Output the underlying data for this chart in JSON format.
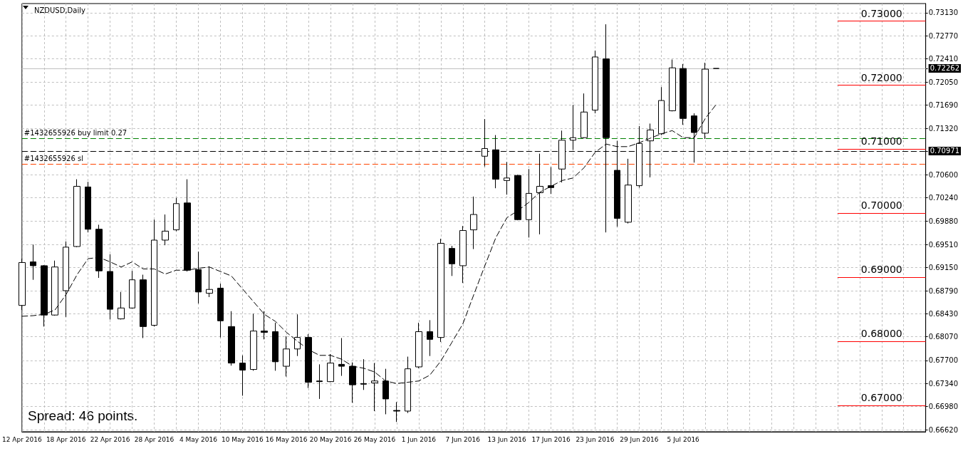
{
  "chart_data": {
    "type": "candlestick",
    "title": "NZDUSD,Daily",
    "categories": [
      "12 Apr 2016",
      null,
      null,
      null,
      "18 Apr 2016",
      null,
      null,
      null,
      "22 Apr 2016",
      null,
      null,
      null,
      "28 Apr 2016",
      null,
      null,
      null,
      "4 May 2016",
      null,
      null,
      null,
      "10 May 2016",
      null,
      null,
      null,
      "16 May 2016",
      null,
      null,
      null,
      "20 May 2016",
      null,
      null,
      null,
      "26 May 2016",
      null,
      null,
      null,
      "1 Jun 2016",
      null,
      null,
      null,
      "7 Jun 2016",
      null,
      null,
      null,
      "13 Jun 2016",
      null,
      null,
      null,
      "17 Jun 2016",
      null,
      null,
      null,
      "23 Jun 2016",
      null,
      null,
      null,
      "29 Jun 2016",
      null,
      null,
      null,
      "5 Jul 2016",
      null,
      null,
      null
    ],
    "series": [
      {
        "type": "candlestick",
        "color": "#000000",
        "ohlc": [
          [
            0.6856,
            0.6929,
            0.6849,
            0.6923
          ],
          [
            0.6924,
            0.6951,
            0.6896,
            0.6918
          ],
          [
            0.6918,
            0.6919,
            0.6823,
            0.6841
          ],
          [
            0.6841,
            0.6926,
            0.684,
            0.6916
          ],
          [
            0.6879,
            0.6956,
            0.6838,
            0.6947
          ],
          [
            0.6948,
            0.7053,
            0.6947,
            0.7042
          ],
          [
            0.7041,
            0.7049,
            0.697,
            0.6975
          ],
          [
            0.6975,
            0.6982,
            0.6899,
            0.691
          ],
          [
            0.6909,
            0.6936,
            0.6834,
            0.685
          ],
          [
            0.6835,
            0.6877,
            0.6834,
            0.6852
          ],
          [
            0.6852,
            0.691,
            0.6851,
            0.6896
          ],
          [
            0.6896,
            0.6904,
            0.6805,
            0.6823
          ],
          [
            0.6825,
            0.699,
            0.6823,
            0.6958
          ],
          [
            0.6958,
            0.6998,
            0.695,
            0.6972
          ],
          [
            0.6974,
            0.7024,
            0.6972,
            0.7015
          ],
          [
            0.7016,
            0.7053,
            0.6909,
            0.6911
          ],
          [
            0.6912,
            0.694,
            0.6859,
            0.6877
          ],
          [
            0.6875,
            0.6917,
            0.6869,
            0.6881
          ],
          [
            0.6883,
            0.689,
            0.6806,
            0.6832
          ],
          [
            0.6823,
            0.6847,
            0.6762,
            0.6766
          ],
          [
            0.6766,
            0.6778,
            0.6715,
            0.6755
          ],
          [
            0.6756,
            0.6843,
            0.6754,
            0.6816
          ],
          [
            0.6816,
            0.6847,
            0.6803,
            0.6814
          ],
          [
            0.6815,
            0.6829,
            0.6754,
            0.6768
          ],
          [
            0.6761,
            0.6808,
            0.6745,
            0.6788
          ],
          [
            0.6788,
            0.6842,
            0.6777,
            0.6806
          ],
          [
            0.6806,
            0.6811,
            0.6727,
            0.6736
          ],
          [
            0.6738,
            0.6764,
            0.671,
            0.6737
          ],
          [
            0.6737,
            0.678,
            0.6736,
            0.6766
          ],
          [
            0.6764,
            0.6805,
            0.6746,
            0.6761
          ],
          [
            0.6761,
            0.6767,
            0.6704,
            0.6732
          ],
          [
            0.6734,
            0.6772,
            0.6724,
            0.6733
          ],
          [
            0.6735,
            0.6766,
            0.6691,
            0.6738
          ],
          [
            0.6738,
            0.6757,
            0.6686,
            0.671
          ],
          [
            0.6692,
            0.6705,
            0.6674,
            0.6691
          ],
          [
            0.6691,
            0.6776,
            0.6688,
            0.6757
          ],
          [
            0.676,
            0.6829,
            0.6758,
            0.6815
          ],
          [
            0.6815,
            0.6833,
            0.6777,
            0.6803
          ],
          [
            0.6806,
            0.696,
            0.6799,
            0.6953
          ],
          [
            0.6945,
            0.6949,
            0.6902,
            0.6921
          ],
          [
            0.6918,
            0.698,
            0.6891,
            0.6973
          ],
          [
            0.6974,
            0.7026,
            0.6944,
            0.6998
          ],
          [
            0.7089,
            0.7147,
            0.7073,
            0.7101
          ],
          [
            0.7099,
            0.7122,
            0.7039,
            0.7053
          ],
          [
            0.7051,
            0.708,
            0.7029,
            0.7055
          ],
          [
            0.7059,
            0.706,
            0.6989,
            0.699
          ],
          [
            0.699,
            0.7069,
            0.6962,
            0.7031
          ],
          [
            0.7032,
            0.7093,
            0.6967,
            0.7042
          ],
          [
            0.7043,
            0.7072,
            0.703,
            0.704
          ],
          [
            0.7069,
            0.7129,
            0.7048,
            0.7114
          ],
          [
            0.7114,
            0.7169,
            0.7099,
            0.7118
          ],
          [
            0.7118,
            0.7187,
            0.7117,
            0.7158
          ],
          [
            0.7161,
            0.7254,
            0.7156,
            0.7244
          ],
          [
            0.7241,
            0.7295,
            0.697,
            0.7118
          ],
          [
            0.7067,
            0.7113,
            0.6979,
            0.6992
          ],
          [
            0.6986,
            0.7085,
            0.6984,
            0.7044
          ],
          [
            0.7043,
            0.7136,
            0.704,
            0.7109
          ],
          [
            0.7113,
            0.714,
            0.7056,
            0.713
          ],
          [
            0.7124,
            0.7197,
            0.7122,
            0.7176
          ],
          [
            0.716,
            0.724,
            0.7159,
            0.7227
          ],
          [
            0.7226,
            0.7233,
            0.7138,
            0.7148
          ],
          [
            0.7152,
            0.7156,
            0.7079,
            0.7126
          ],
          [
            0.7125,
            0.7235,
            0.7116,
            0.7225
          ],
          [
            0.7226,
            0.7226,
            0.7226,
            0.7226
          ]
        ]
      },
      {
        "type": "line",
        "color": "#000000",
        "line_style": "dashed",
        "values": [
          0.6839,
          0.684,
          0.6842,
          0.6849,
          0.6873,
          0.6904,
          0.6929,
          0.6931,
          0.6924,
          0.6916,
          0.6924,
          0.6913,
          0.6913,
          0.6905,
          0.6911,
          0.6911,
          0.6914,
          0.6916,
          0.6909,
          0.6902,
          0.6882,
          0.6862,
          0.6842,
          0.6831,
          0.6814,
          0.68,
          0.6787,
          0.6778,
          0.6778,
          0.6772,
          0.6761,
          0.6758,
          0.6752,
          0.6738,
          0.6734,
          0.6736,
          0.6738,
          0.6747,
          0.6769,
          0.6798,
          0.6827,
          0.6873,
          0.6918,
          0.6962,
          0.6993,
          0.7004,
          0.7017,
          0.7033,
          0.7042,
          0.7051,
          0.7055,
          0.7071,
          0.7095,
          0.7108,
          0.7104,
          0.7104,
          0.711,
          0.7117,
          0.7124,
          0.7129,
          0.7118,
          0.7118,
          0.7148,
          0.717
        ]
      }
    ],
    "ylim": [
      0.66587,
      0.73274
    ],
    "yticks": [
      {
        "value": 0.7313,
        "label": "0.73130"
      },
      {
        "value": 0.7277,
        "label": "0.72770"
      },
      {
        "value": 0.7241,
        "label": "0.72410"
      },
      {
        "value": 0.72262,
        "label": "0.72262"
      },
      {
        "value": 0.7205,
        "label": "0.72050"
      },
      {
        "value": 0.7169,
        "label": "0.71690"
      },
      {
        "value": 0.7132,
        "label": "0.71320"
      },
      {
        "value": 0.70971,
        "label": "0.70971"
      },
      {
        "value": 0.706,
        "label": "0.70600"
      },
      {
        "value": 0.7024,
        "label": "0.70240"
      },
      {
        "value": 0.6988,
        "label": "0.69880"
      },
      {
        "value": 0.6951,
        "label": "0.69510"
      },
      {
        "value": 0.6915,
        "label": "0.69150"
      },
      {
        "value": 0.6879,
        "label": "0.68790"
      },
      {
        "value": 0.6843,
        "label": "0.68430"
      },
      {
        "value": 0.6807,
        "label": "0.68070"
      },
      {
        "value": 0.677,
        "label": "0.67700"
      },
      {
        "value": 0.6734,
        "label": "0.67340"
      },
      {
        "value": 0.6698,
        "label": "0.66980"
      },
      {
        "value": 0.6662,
        "label": "0.66620"
      }
    ],
    "ref_lines": [
      {
        "axis": "y",
        "value": 0.7117,
        "label": "#1432655926 buy limit 0.27",
        "color": "#008000",
        "line_style": "dashed"
      },
      {
        "axis": "y",
        "value": 0.7077,
        "label": "#1432655926 sl",
        "color": "#ff4500",
        "line_style": "dashed"
      },
      {
        "axis": "y",
        "value": 0.70971,
        "color": "#000000",
        "line_style": "dashed"
      },
      {
        "axis": "y",
        "value": 0.72262,
        "color": "#c0c0c0",
        "line_style": "solid"
      },
      {
        "axis": "y",
        "value": 0.73,
        "label": "0.73000",
        "color": "#ff0000",
        "line_style": "solid"
      },
      {
        "axis": "y",
        "value": 0.72,
        "label": "0.72000",
        "color": "#ff0000",
        "line_style": "solid"
      },
      {
        "axis": "y",
        "value": 0.71,
        "label": "0.71000",
        "color": "#ff0000",
        "line_style": "solid"
      },
      {
        "axis": "y",
        "value": 0.7,
        "label": "0.70000",
        "color": "#ff0000",
        "line_style": "solid"
      },
      {
        "axis": "y",
        "value": 0.69,
        "label": "0.69000",
        "color": "#ff0000",
        "line_style": "solid"
      },
      {
        "axis": "y",
        "value": 0.68,
        "label": "0.68000",
        "color": "#ff0000",
        "line_style": "solid"
      },
      {
        "axis": "y",
        "value": 0.67,
        "label": "0.67000",
        "color": "#ff0000",
        "line_style": "solid"
      }
    ],
    "annotations": [
      "Spread: 46 points."
    ],
    "grid": true,
    "marker": "none"
  }
}
